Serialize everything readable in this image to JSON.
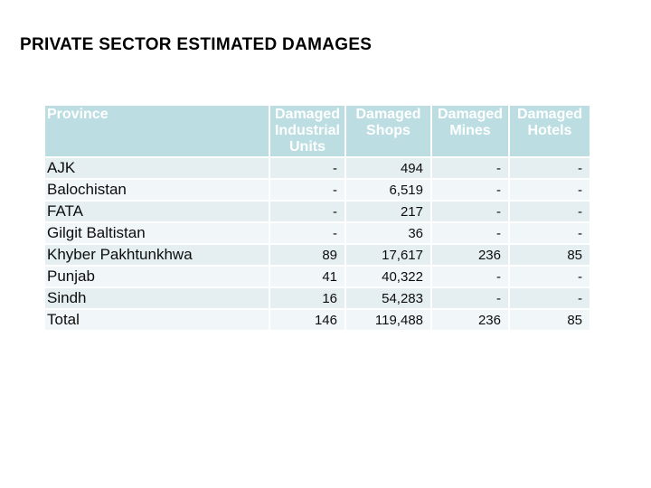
{
  "slide": {
    "title": "PRIVATE SECTOR ESTIMATED DAMAGES"
  },
  "table": {
    "columns": [
      {
        "id": "province",
        "label": "Province"
      },
      {
        "id": "damaged_industrial_units",
        "label": "Damaged Industrial Units"
      },
      {
        "id": "damaged_shops",
        "label": "Damaged Shops"
      },
      {
        "id": "damaged_mines",
        "label": "Damaged Mines"
      },
      {
        "id": "damaged_hotels",
        "label": "Damaged Hotels"
      }
    ],
    "rows": [
      {
        "province": "AJK",
        "values": [
          "-",
          "494",
          "-",
          "-"
        ]
      },
      {
        "province": "Balochistan",
        "values": [
          "-",
          "6,519",
          "-",
          "-"
        ]
      },
      {
        "province": "FATA",
        "values": [
          "-",
          "217",
          "-",
          "-"
        ]
      },
      {
        "province": "Gilgit Baltistan",
        "values": [
          "-",
          "36",
          "-",
          "-"
        ]
      },
      {
        "province": "Khyber Pakhtunkhwa",
        "values": [
          "89",
          "17,617",
          "236",
          "85"
        ]
      },
      {
        "province": "Punjab",
        "values": [
          "41",
          "40,322",
          "-",
          "-"
        ]
      },
      {
        "province": "Sindh",
        "values": [
          "16",
          "54,283",
          "-",
          "-"
        ]
      },
      {
        "province": "Total",
        "values": [
          "146",
          "119,488",
          "236",
          "85"
        ]
      }
    ]
  },
  "colors": {
    "header_bg": "#bcdee2",
    "header_text": "#ffffff",
    "row_teal": "#e5eff1",
    "row_light": "#f1f6f8",
    "grid_line": "#ffffff",
    "body_text": "#0d0d0d",
    "title_text": "#000000"
  }
}
